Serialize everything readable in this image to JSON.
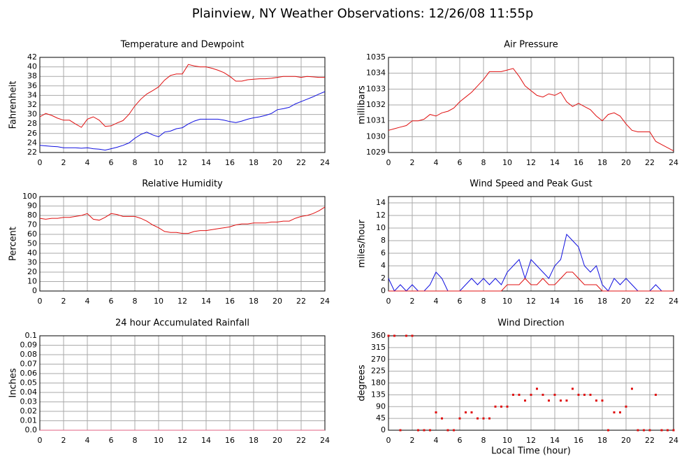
{
  "title": "Plainview, NY Weather Observations: 12/26/08 11:55p",
  "chart_data": [
    {
      "type": "line",
      "title": "Temperature and Dewpoint",
      "ylabel": "Fahrenheit",
      "x": [
        0,
        0.5,
        1,
        1.5,
        2,
        2.5,
        3,
        3.5,
        4,
        4.5,
        5,
        5.5,
        6,
        6.5,
        7,
        7.5,
        8,
        8.5,
        9,
        9.5,
        10,
        10.5,
        11,
        11.5,
        12,
        12.5,
        13,
        13.5,
        14,
        14.5,
        15,
        15.5,
        16,
        16.5,
        17,
        17.5,
        18,
        18.5,
        19,
        19.5,
        20,
        20.5,
        21,
        21.5,
        22,
        22.5,
        23,
        23.5,
        24
      ],
      "series": [
        {
          "color": "#e01010",
          "values": [
            29.5,
            30.2,
            29.8,
            29.2,
            28.8,
            28.8,
            28.0,
            27.3,
            29.0,
            29.5,
            28.8,
            27.5,
            27.6,
            28.2,
            28.7,
            30.0,
            31.8,
            33.2,
            34.3,
            35.0,
            35.8,
            37.2,
            38.2,
            38.5,
            38.5,
            40.5,
            40.2,
            40.0,
            40.0,
            39.7,
            39.3,
            38.8,
            38.0,
            37.0,
            37.0,
            37.3,
            37.4,
            37.5,
            37.5,
            37.6,
            37.8,
            38.0,
            38.0,
            38.0,
            37.8,
            38.0,
            37.9,
            37.8,
            37.8
          ]
        },
        {
          "color": "#1010e0",
          "values": [
            23.5,
            23.4,
            23.3,
            23.2,
            23.0,
            23.0,
            23.0,
            22.9,
            23.0,
            22.8,
            22.7,
            22.5,
            22.8,
            23.1,
            23.5,
            24.0,
            25.0,
            25.8,
            26.3,
            25.7,
            25.3,
            26.3,
            26.5,
            27.0,
            27.2,
            28.0,
            28.6,
            29.0,
            29.0,
            29.0,
            29.0,
            28.8,
            28.5,
            28.3,
            28.6,
            29.0,
            29.3,
            29.5,
            29.8,
            30.2,
            31.0,
            31.2,
            31.5,
            32.2,
            32.7,
            33.2,
            33.7,
            34.3,
            34.8
          ]
        }
      ],
      "xlim": [
        0,
        24
      ],
      "xticks": [
        0,
        2,
        4,
        6,
        8,
        10,
        12,
        14,
        16,
        18,
        20,
        22,
        24
      ],
      "ylim": [
        22,
        42
      ],
      "yticks": [
        22,
        24,
        26,
        28,
        30,
        32,
        34,
        36,
        38,
        40,
        42
      ],
      "grid": true
    },
    {
      "type": "line",
      "title": "Air Pressure",
      "ylabel": "millibars",
      "x": [
        0,
        0.5,
        1,
        1.5,
        2,
        2.5,
        3,
        3.5,
        4,
        4.5,
        5,
        5.5,
        6,
        6.5,
        7,
        7.5,
        8,
        8.5,
        9,
        9.5,
        10,
        10.5,
        11,
        11.5,
        12,
        12.5,
        13,
        13.5,
        14,
        14.5,
        15,
        15.5,
        16,
        16.5,
        17,
        17.5,
        18,
        18.5,
        19,
        19.5,
        20,
        20.5,
        21,
        21.5,
        22,
        22.5,
        23,
        23.5,
        24
      ],
      "values": [
        1030.4,
        1030.5,
        1030.6,
        1030.7,
        1031.0,
        1031.0,
        1031.1,
        1031.4,
        1031.3,
        1031.5,
        1031.6,
        1031.8,
        1032.2,
        1032.5,
        1032.8,
        1033.2,
        1033.6,
        1034.1,
        1034.1,
        1034.1,
        1034.2,
        1034.3,
        1033.8,
        1033.2,
        1032.9,
        1032.6,
        1032.5,
        1032.7,
        1032.6,
        1032.8,
        1032.2,
        1031.9,
        1032.1,
        1031.9,
        1031.7,
        1031.3,
        1031.0,
        1031.4,
        1031.5,
        1031.3,
        1030.8,
        1030.4,
        1030.3,
        1030.3,
        1030.3,
        1029.7,
        1029.5,
        1029.3,
        1029.1
      ],
      "color": "#e01010",
      "xlim": [
        0,
        24
      ],
      "xticks": [
        0,
        2,
        4,
        6,
        8,
        10,
        12,
        14,
        16,
        18,
        20,
        22,
        24
      ],
      "ylim": [
        1029,
        1035
      ],
      "yticks": [
        1029,
        1030,
        1031,
        1032,
        1033,
        1034,
        1035
      ],
      "grid": true
    },
    {
      "type": "line",
      "title": "Relative Humidity",
      "ylabel": "Percent",
      "x": [
        0,
        0.5,
        1,
        1.5,
        2,
        2.5,
        3,
        3.5,
        4,
        4.5,
        5,
        5.5,
        6,
        6.5,
        7,
        7.5,
        8,
        8.5,
        9,
        9.5,
        10,
        10.5,
        11,
        11.5,
        12,
        12.5,
        13,
        13.5,
        14,
        14.5,
        15,
        15.5,
        16,
        16.5,
        17,
        17.5,
        18,
        18.5,
        19,
        19.5,
        20,
        20.5,
        21,
        21.5,
        22,
        22.5,
        23,
        23.5,
        24
      ],
      "values": [
        77,
        76,
        77,
        77,
        78,
        78,
        79,
        80,
        82,
        76,
        75,
        78,
        82,
        81,
        79,
        79,
        79,
        77,
        74,
        70,
        67,
        63,
        62,
        62,
        61,
        61,
        63,
        64,
        64,
        65,
        66,
        67,
        68,
        70,
        71,
        71,
        72,
        72,
        72,
        73,
        73,
        74,
        74,
        77,
        79,
        80,
        82,
        85,
        89
      ],
      "color": "#e01010",
      "xlim": [
        0,
        24
      ],
      "xticks": [
        0,
        2,
        4,
        6,
        8,
        10,
        12,
        14,
        16,
        18,
        20,
        22,
        24
      ],
      "ylim": [
        0,
        100
      ],
      "yticks": [
        0,
        10,
        20,
        30,
        40,
        50,
        60,
        70,
        80,
        90,
        100
      ],
      "grid": true
    },
    {
      "type": "line",
      "title": "Wind Speed and Peak Gust",
      "ylabel": "miles/hour",
      "x": [
        0,
        0.5,
        1,
        1.5,
        2,
        2.5,
        3,
        3.5,
        4,
        4.5,
        5,
        5.5,
        6,
        6.5,
        7,
        7.5,
        8,
        8.5,
        9,
        9.5,
        10,
        10.5,
        11,
        11.5,
        12,
        12.5,
        13,
        13.5,
        14,
        14.5,
        15,
        15.5,
        16,
        16.5,
        17,
        17.5,
        18,
        18.5,
        19,
        19.5,
        20,
        20.5,
        21,
        21.5,
        22,
        22.5,
        23,
        23.5,
        24
      ],
      "series": [
        {
          "color": "#1010e0",
          "values": [
            2,
            0,
            1,
            0,
            1,
            0,
            0,
            1,
            3,
            2,
            0,
            0,
            0,
            1,
            2,
            1,
            2,
            1,
            2,
            1,
            3,
            4,
            5,
            2,
            5,
            4,
            3,
            2,
            4,
            5,
            9,
            8,
            7,
            4,
            3,
            4,
            1,
            0,
            2,
            1,
            2,
            1,
            0,
            0,
            0,
            1,
            0,
            0,
            0
          ]
        },
        {
          "color": "#e01010",
          "values": [
            0,
            0,
            0,
            0,
            0,
            0,
            0,
            0,
            0,
            0,
            0,
            0,
            0,
            0,
            0,
            0,
            0,
            0,
            0,
            0,
            1,
            1,
            1,
            2,
            1,
            1,
            2,
            1,
            1,
            2,
            3,
            3,
            2,
            1,
            1,
            1,
            0,
            0,
            0,
            0,
            0,
            0,
            0,
            0,
            0,
            0,
            0,
            0,
            0
          ]
        }
      ],
      "xlim": [
        0,
        24
      ],
      "xticks": [
        0,
        2,
        4,
        6,
        8,
        10,
        12,
        14,
        16,
        18,
        20,
        22,
        24
      ],
      "ylim": [
        0,
        15
      ],
      "yticks": [
        0,
        2,
        4,
        6,
        8,
        10,
        12,
        14
      ],
      "grid": true
    },
    {
      "type": "line",
      "title": "24 hour Accumulated Rainfall",
      "ylabel": "Inches",
      "x": [
        0,
        24
      ],
      "values": [
        0,
        0
      ],
      "color": "#e06080",
      "xlim": [
        0,
        24
      ],
      "xticks": [
        0,
        2,
        4,
        6,
        8,
        10,
        12,
        14,
        16,
        18,
        20,
        22,
        24
      ],
      "ylim": [
        0,
        0.1
      ],
      "yticks": [
        {
          "value": 0,
          "label": "0.0"
        },
        0.01,
        0.02,
        0.03,
        0.04,
        0.05,
        0.06,
        0.07,
        0.08,
        0.09,
        0.1
      ],
      "grid": true
    },
    {
      "type": "scatter",
      "title": "Wind Direction",
      "ylabel": "degrees",
      "xlabel": "Local Time (hour)",
      "x": [
        0,
        0.5,
        1,
        1.5,
        2,
        2.5,
        3,
        3.5,
        4,
        4.5,
        5,
        5.5,
        6,
        6.5,
        7,
        7.5,
        8,
        8.5,
        9,
        9.5,
        10,
        10.5,
        11,
        11.5,
        12,
        12.5,
        13,
        13.5,
        14,
        14.5,
        15,
        15.5,
        16,
        16.5,
        17,
        17.5,
        18,
        18.5,
        19,
        19.5,
        20,
        20.5,
        21,
        21.5,
        22,
        22.5,
        23,
        23.5,
        24
      ],
      "values": [
        360,
        360,
        0,
        360,
        360,
        0,
        0,
        0,
        68,
        45,
        0,
        0,
        45,
        68,
        68,
        45,
        45,
        45,
        90,
        90,
        90,
        135,
        135,
        113,
        135,
        158,
        135,
        113,
        135,
        113,
        113,
        158,
        135,
        135,
        135,
        113,
        113,
        0,
        68,
        68,
        90,
        158,
        0,
        0,
        0,
        135,
        0,
        0,
        0
      ],
      "color": "#e01010",
      "xlim": [
        0,
        24
      ],
      "xticks": [
        0,
        2,
        4,
        6,
        8,
        10,
        12,
        14,
        16,
        18,
        20,
        22,
        24
      ],
      "ylim": [
        0,
        360
      ],
      "yticks": [
        0,
        45,
        90,
        135,
        180,
        225,
        270,
        315,
        360
      ],
      "grid": true
    }
  ]
}
